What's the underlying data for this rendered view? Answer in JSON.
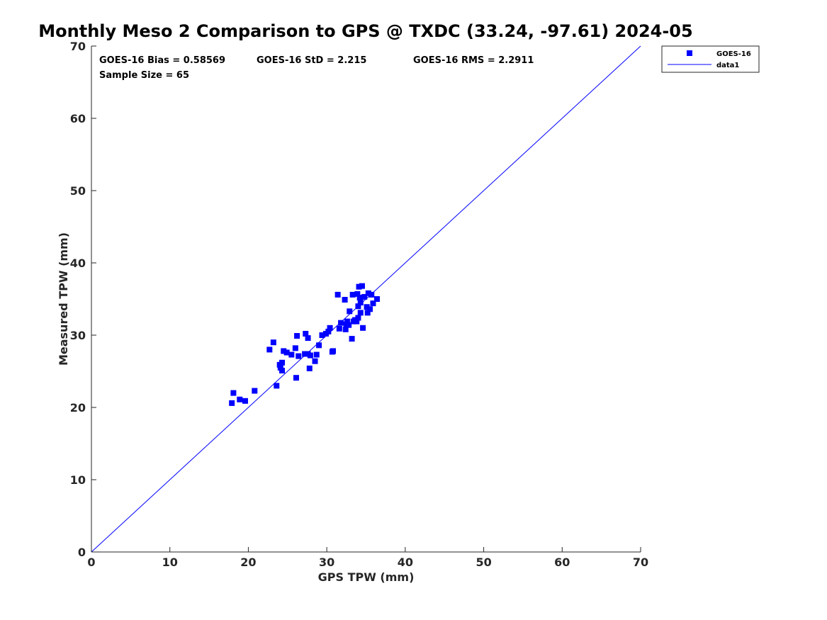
{
  "chart_data": {
    "type": "scatter",
    "title": "Monthly Meso 2 Comparison to GPS @ TXDC (33.24, -97.61) 2024-05",
    "xlabel": "GPS TPW (mm)",
    "ylabel": "Measured TPW (mm)",
    "xlim": [
      0,
      70
    ],
    "ylim": [
      0,
      70
    ],
    "xticks": [
      "0",
      "10",
      "20",
      "30",
      "40",
      "50",
      "60",
      "70"
    ],
    "yticks": [
      "0",
      "10",
      "20",
      "30",
      "40",
      "50",
      "60",
      "70"
    ],
    "grid": false,
    "legend_position": "top-right",
    "stats": {
      "bias": "GOES-16 Bias = 0.58569",
      "std": "GOES-16 StD = 2.215",
      "rms": "GOES-16 RMS = 2.2911",
      "sample": "Sample Size = 65"
    },
    "series": [
      {
        "name": "GOES-16",
        "type": "scatter",
        "color": "#0000ff",
        "points": [
          [
            17.9,
            20.6
          ],
          [
            18.1,
            22.0
          ],
          [
            18.9,
            21.1
          ],
          [
            19.6,
            20.9
          ],
          [
            20.8,
            22.3
          ],
          [
            22.7,
            28.0
          ],
          [
            23.2,
            29.0
          ],
          [
            23.6,
            23.0
          ],
          [
            24.0,
            25.9
          ],
          [
            24.1,
            25.5
          ],
          [
            24.3,
            26.2
          ],
          [
            24.3,
            25.1
          ],
          [
            24.5,
            27.8
          ],
          [
            24.9,
            27.6
          ],
          [
            25.5,
            27.3
          ],
          [
            26.0,
            28.2
          ],
          [
            26.1,
            24.1
          ],
          [
            26.2,
            29.9
          ],
          [
            26.4,
            27.1
          ],
          [
            27.2,
            27.4
          ],
          [
            27.3,
            30.2
          ],
          [
            27.6,
            29.6
          ],
          [
            27.6,
            27.4
          ],
          [
            27.8,
            25.4
          ],
          [
            28.5,
            26.4
          ],
          [
            28.7,
            27.3
          ],
          [
            29.0,
            28.6
          ],
          [
            29.4,
            30.0
          ],
          [
            30.2,
            30.5
          ],
          [
            30.4,
            31.0
          ],
          [
            30.7,
            27.7
          ],
          [
            30.8,
            27.8
          ],
          [
            31.4,
            35.6
          ],
          [
            31.6,
            30.9
          ],
          [
            31.8,
            31.7
          ],
          [
            32.3,
            34.9
          ],
          [
            32.4,
            30.8
          ],
          [
            32.6,
            31.9
          ],
          [
            32.8,
            31.4
          ],
          [
            32.9,
            33.3
          ],
          [
            33.2,
            29.5
          ],
          [
            33.3,
            35.6
          ],
          [
            33.4,
            31.9
          ],
          [
            33.8,
            31.9
          ],
          [
            33.9,
            35.7
          ],
          [
            34.0,
            32.4
          ],
          [
            34.1,
            36.7
          ],
          [
            34.2,
            35.2
          ],
          [
            34.3,
            33.1
          ],
          [
            34.3,
            34.5
          ],
          [
            34.5,
            36.8
          ],
          [
            34.6,
            31.0
          ],
          [
            34.8,
            35.3
          ],
          [
            35.1,
            33.9
          ],
          [
            35.2,
            33.1
          ],
          [
            35.3,
            35.8
          ],
          [
            35.5,
            33.6
          ],
          [
            35.7,
            35.6
          ],
          [
            35.9,
            34.4
          ],
          [
            36.4,
            35.0
          ],
          [
            33.6,
            32.1
          ],
          [
            34.0,
            34.0
          ],
          [
            32.5,
            31.5
          ],
          [
            29.9,
            30.2
          ],
          [
            27.9,
            27.2
          ]
        ]
      },
      {
        "name": "data1",
        "type": "line",
        "color": "#0000ff",
        "points": [
          [
            0,
            0
          ],
          [
            70,
            70
          ]
        ]
      }
    ]
  }
}
